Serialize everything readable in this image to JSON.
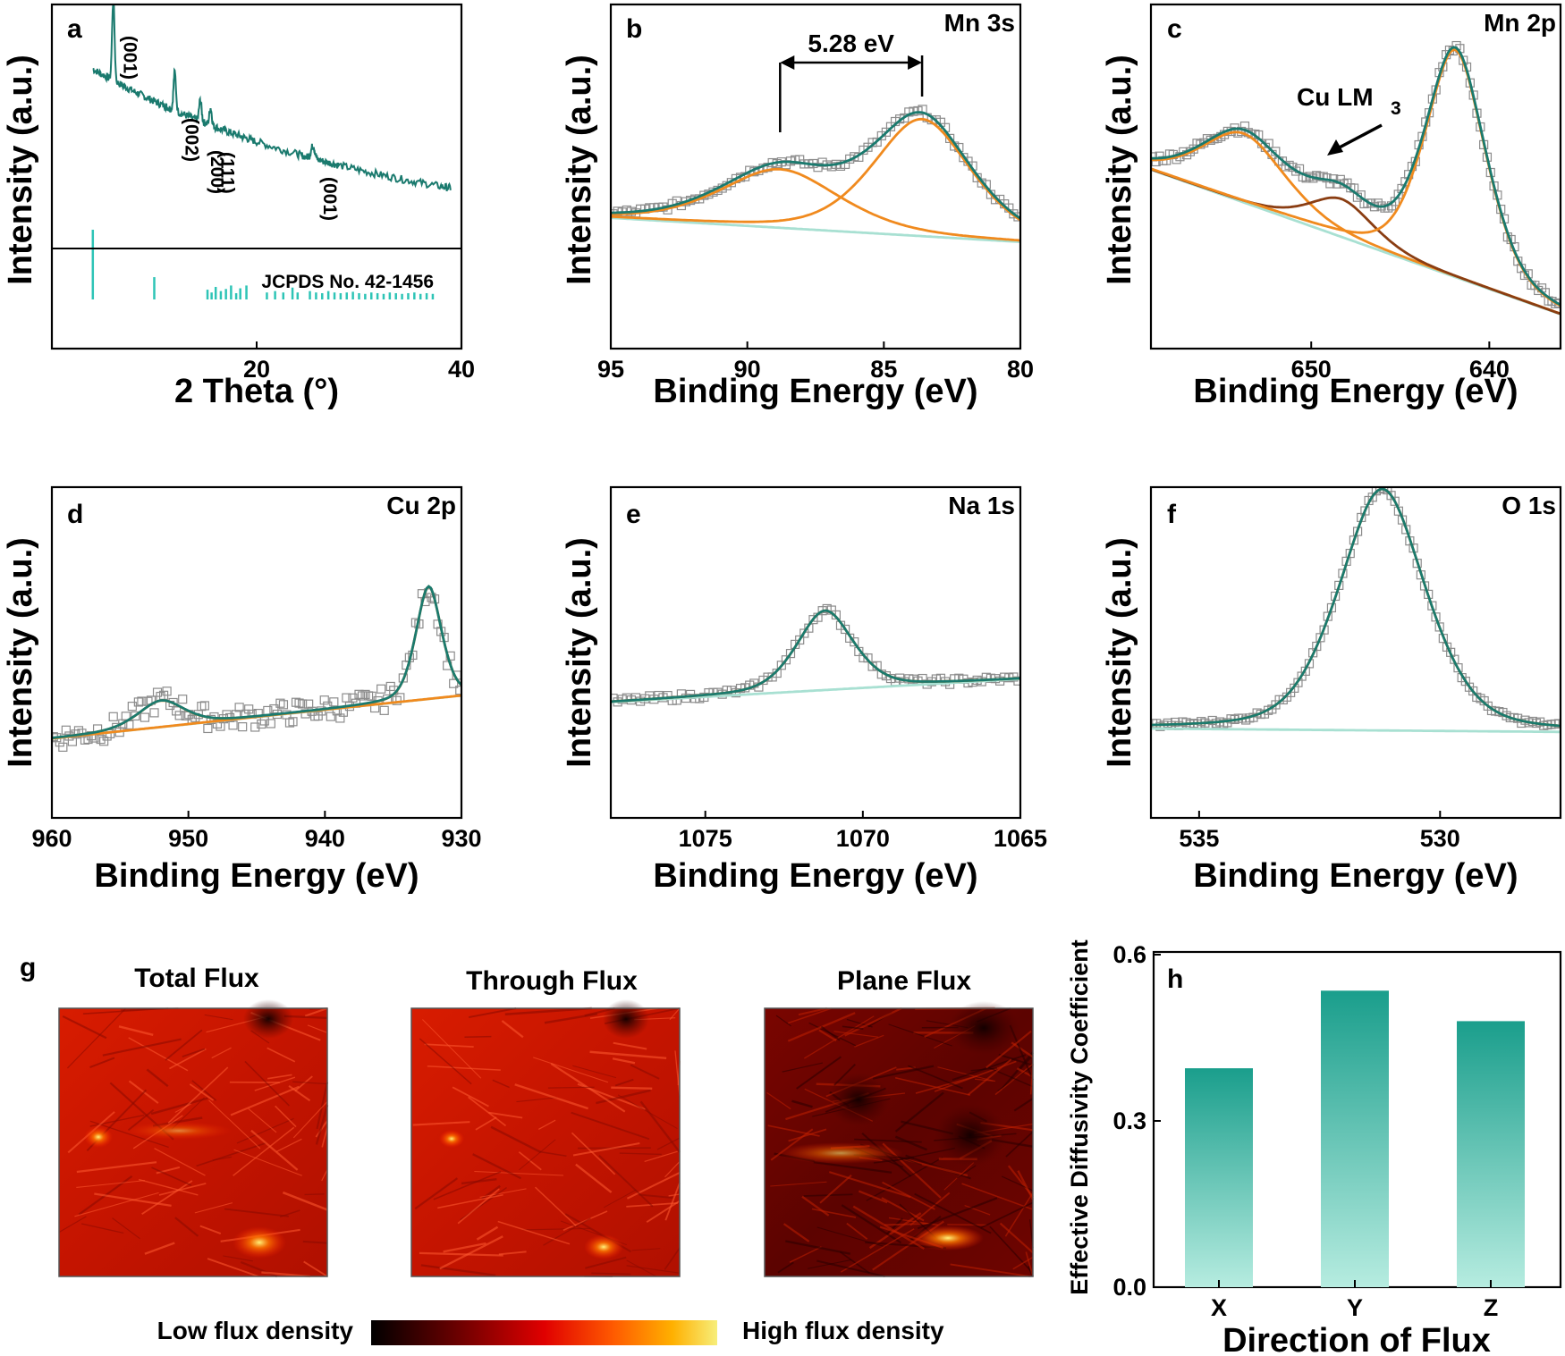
{
  "colors": {
    "envelope": "#1a7a6e",
    "component_orange": "#f08a1e",
    "component_brown": "#8a3d12",
    "background_line": "#a8e0d2",
    "raw_marker": "#8c8c8c",
    "xrd_pattern": "#1a7a6e",
    "reference_stick": "#2ec4b6",
    "bar_top": "#1a9e8c",
    "bar_bottom": "#b6ece0"
  },
  "chart_data": [
    {
      "panel": "a",
      "type": "line",
      "xlabel": "2 Theta (°)",
      "ylabel": "Intensity (a.u.)",
      "xlim": [
        0,
        40
      ],
      "xticks": [
        "20",
        "40"
      ],
      "series_pattern": {
        "x": [
          4,
          5,
          6,
          7,
          8,
          9,
          10,
          11,
          11.5,
          12,
          13,
          14,
          14.5,
          15,
          15.5,
          16,
          17,
          18,
          19,
          20,
          22,
          24,
          25,
          25.5,
          26,
          27,
          28,
          30,
          32,
          34,
          36,
          38,
          39
        ],
        "y": [
          0.75,
          0.74,
          1.0,
          0.71,
          0.69,
          0.66,
          0.64,
          0.61,
          0.79,
          0.58,
          0.55,
          0.52,
          0.63,
          0.5,
          0.59,
          0.46,
          0.43,
          0.41,
          0.4,
          0.37,
          0.34,
          0.31,
          0.3,
          0.37,
          0.29,
          0.27,
          0.25,
          0.22,
          0.2,
          0.19,
          0.17,
          0.15,
          0.13
        ]
      },
      "peak_labels": [
        {
          "text": "(001)",
          "x": 6.0
        },
        {
          "text": "(002)",
          "x": 12.0
        },
        {
          "text": "(200)",
          "x": 14.5
        },
        {
          "text": "(111)",
          "x": 15.5
        },
        {
          "text": "(001)",
          "x": 25.5
        }
      ],
      "reference_label": "JCPDS No. 42-1456",
      "reference_sticks": {
        "x": [
          4.0,
          10.0,
          15.2,
          15.6,
          16.0,
          16.5,
          17.0,
          17.5,
          18.0,
          18.4,
          19.0,
          21.0,
          21.8,
          22.6,
          23.5,
          24.0,
          25.2,
          25.8,
          26.4,
          27.0,
          27.6,
          28.2,
          28.8,
          29.4,
          30.0,
          30.6,
          31.2,
          31.8,
          32.4,
          33.0,
          33.6,
          34.2,
          34.8,
          35.4,
          36.0,
          36.6,
          37.2
        ],
        "h": [
          1.0,
          0.32,
          0.14,
          0.1,
          0.18,
          0.12,
          0.15,
          0.2,
          0.09,
          0.16,
          0.2,
          0.1,
          0.12,
          0.1,
          0.17,
          0.1,
          0.12,
          0.1,
          0.09,
          0.12,
          0.1,
          0.09,
          0.1,
          0.11,
          0.09,
          0.08,
          0.1,
          0.09,
          0.08,
          0.1,
          0.09,
          0.08,
          0.09,
          0.1,
          0.08,
          0.09,
          0.08
        ]
      }
    },
    {
      "panel": "b",
      "type": "line",
      "title": "Mn 3s",
      "xlabel": "Binding Energy (eV)",
      "ylabel": "Intensity (a.u.)",
      "xlim": [
        95,
        80
      ],
      "xticks": [
        "95",
        "90",
        "85",
        "80"
      ],
      "annotation": "5.28 eV",
      "components": [
        {
          "center": 88.8,
          "height": 0.17,
          "width": 2.3
        },
        {
          "center": 83.6,
          "height": 0.34,
          "width": 1.9
        }
      ],
      "background": {
        "x": [
          95,
          80
        ],
        "y": [
          0.38,
          0.31
        ]
      },
      "data_points": 90
    },
    {
      "panel": "c",
      "type": "line",
      "title": "Mn 2p",
      "xlabel": "Binding Energy (eV)",
      "ylabel": "Intensity (a.u.)",
      "xlim": [
        659,
        636
      ],
      "xticks": [
        "650",
        "640"
      ],
      "annotation": "Cu LM",
      "annotation_sub": "3",
      "components": [
        {
          "center": 653.8,
          "height": 0.2,
          "width": 2.5,
          "color": "component_orange"
        },
        {
          "center": 648.3,
          "height": 0.11,
          "width": 1.9,
          "color": "component_brown"
        },
        {
          "center": 641.9,
          "height": 0.66,
          "width": 1.8,
          "color": "component_orange"
        }
      ],
      "background": {
        "x": [
          659,
          636
        ],
        "y": [
          0.52,
          0.1
        ]
      },
      "data_points": 120
    },
    {
      "panel": "d",
      "type": "line",
      "title": "Cu 2p",
      "xlabel": "Binding Energy (eV)",
      "ylabel": "Intensity (a.u.)",
      "xlim": [
        960,
        930
      ],
      "xticks": [
        "960",
        "950",
        "940",
        "930"
      ],
      "components": [
        {
          "center": 952.0,
          "height": 0.08,
          "width": 1.8
        },
        {
          "center": 932.4,
          "height": 0.34,
          "width": 1.0
        }
      ],
      "background": {
        "x": [
          960,
          930
        ],
        "y": [
          0.24,
          0.37
        ]
      },
      "data_points": 130
    },
    {
      "panel": "e",
      "type": "line",
      "title": "Na 1s",
      "xlabel": "Binding Energy (eV)",
      "ylabel": "Intensity (a.u.)",
      "xlim": [
        1078,
        1065
      ],
      "xticks": [
        "1075",
        "1070",
        "1065"
      ],
      "components": [
        {
          "center": 1071.2,
          "height": 0.24,
          "width": 0.95
        }
      ],
      "background": {
        "x": [
          1078,
          1065
        ],
        "y": [
          0.35,
          0.42
        ]
      },
      "data_points": 90
    },
    {
      "panel": "f",
      "type": "line",
      "title": "O 1s",
      "xlabel": "Binding Energy (eV)",
      "ylabel": "Intensity (a.u.)",
      "xlim": [
        536,
        527.5
      ],
      "xticks": [
        "535",
        "530"
      ],
      "components": [
        {
          "center": 531.2,
          "height": 0.73,
          "width": 0.95
        }
      ],
      "background": {
        "x": [
          536,
          527.5
        ],
        "y": [
          0.27,
          0.26
        ]
      },
      "data_points": 110
    },
    {
      "panel": "h",
      "type": "bar",
      "xlabel": "Direction of Flux",
      "ylabel": "Effective Diffusivity Coefficient",
      "categories": [
        "X",
        "Y",
        "Z"
      ],
      "values": [
        0.395,
        0.535,
        0.48
      ],
      "ylim": [
        0,
        0.6
      ],
      "yticks": [
        "0.0",
        "0.3",
        "0.6"
      ]
    }
  ],
  "panel_letters": [
    "a",
    "b",
    "c",
    "d",
    "e",
    "f",
    "g",
    "h"
  ],
  "flux_maps": {
    "titles": [
      "Total Flux",
      "Through Flux",
      "Plane Flux"
    ],
    "colorbar_low": "Low flux density",
    "colorbar_high": "High flux density",
    "colorbar_colors": [
      "#000000",
      "#6b0000",
      "#e00000",
      "#ff5a00",
      "#ffb000",
      "#f7ee7a"
    ]
  }
}
